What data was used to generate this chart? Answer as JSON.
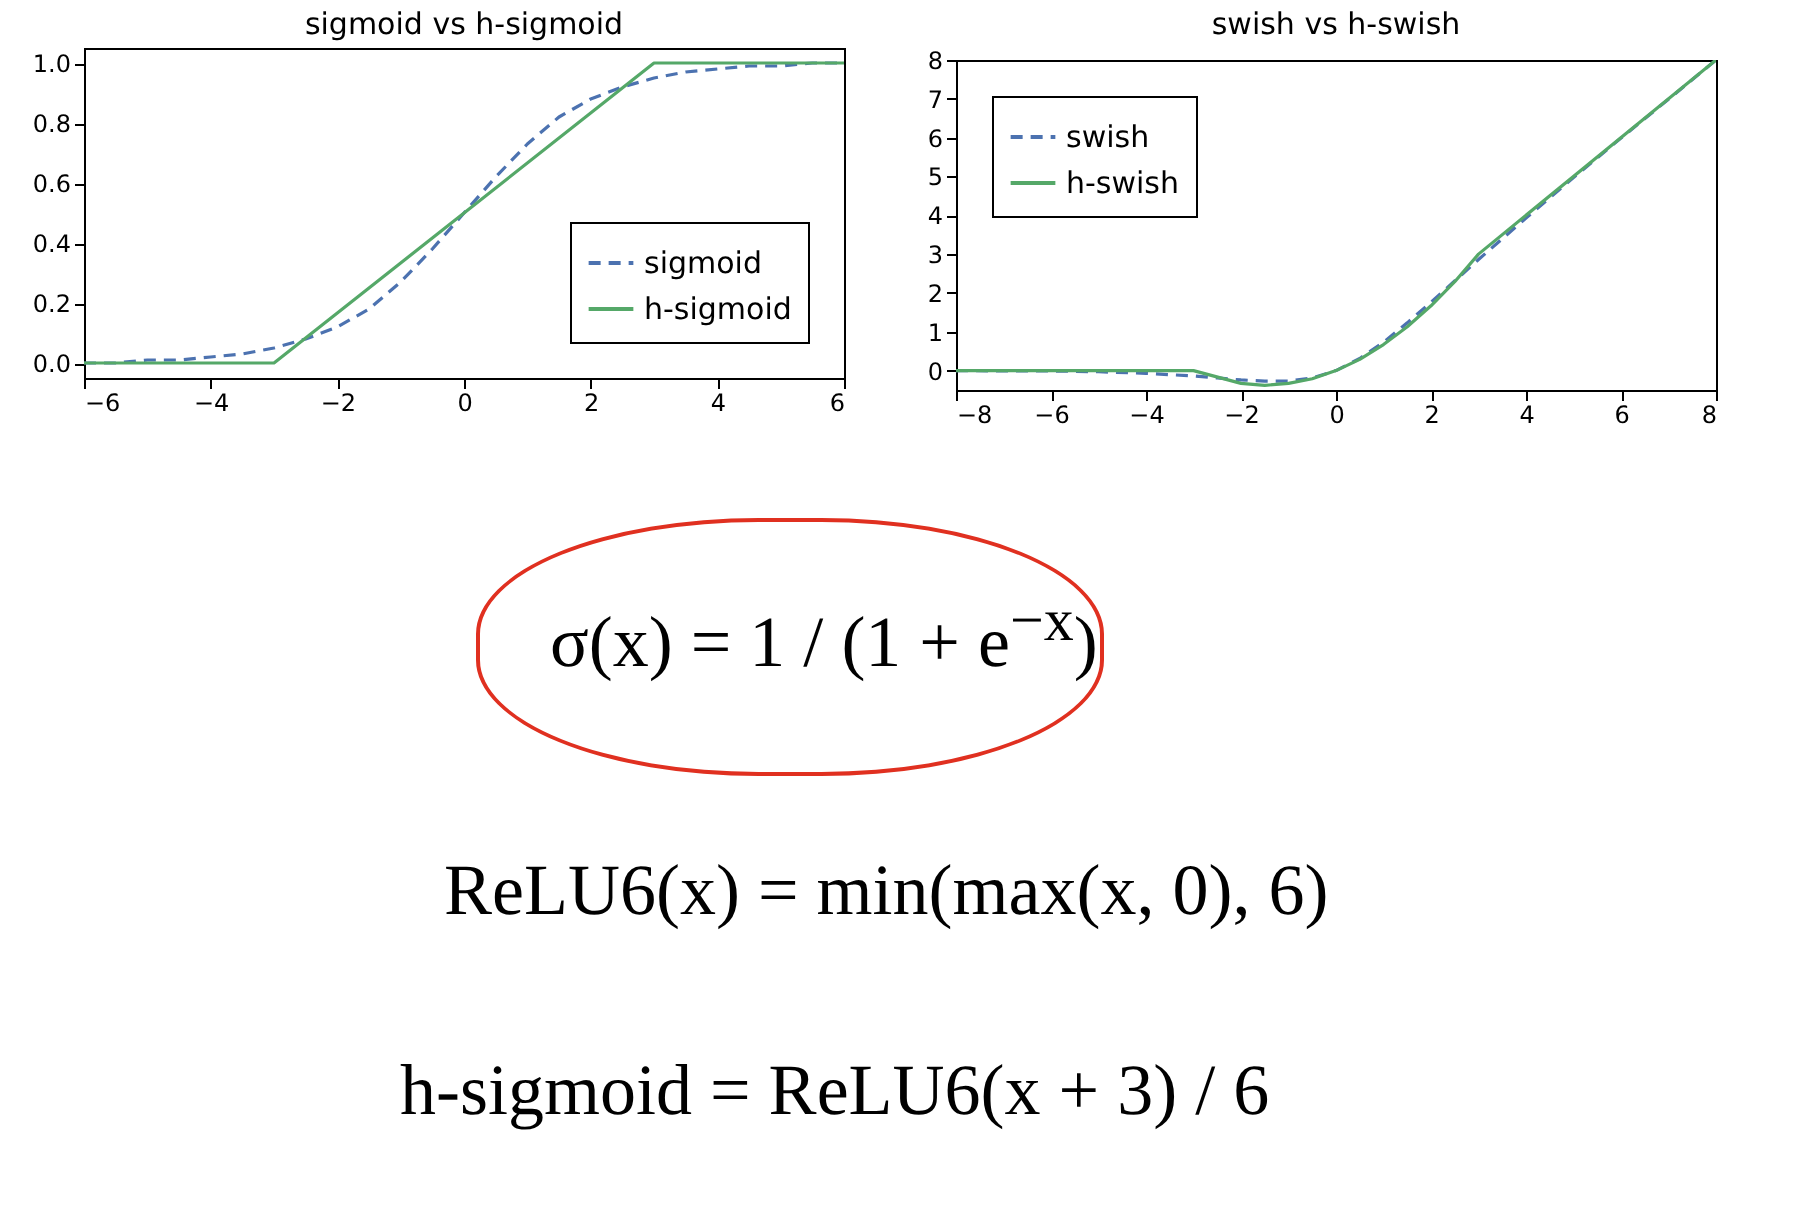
{
  "chart_data": [
    {
      "type": "line",
      "title": "sigmoid vs h-sigmoid",
      "legend": "bottom right",
      "xlim": [
        -6,
        6
      ],
      "ylim": [
        -0.05,
        1.05
      ],
      "xticks": [
        -6,
        -4,
        -2,
        0,
        2,
        4,
        6
      ],
      "yticks": [
        {
          "value": 0,
          "label": "0.0"
        },
        {
          "value": 0.2,
          "label": "0.2"
        },
        {
          "value": 0.4,
          "label": "0.4"
        },
        {
          "value": 0.6,
          "label": "0.6"
        },
        {
          "value": 0.8,
          "label": "0.8"
        },
        {
          "value": 1,
          "label": "1.0"
        }
      ],
      "series": [
        {
          "name": "sigmoid",
          "color": "#4c72b0",
          "line_style": "dashed",
          "x": [
            -6,
            -5.5,
            -5,
            -4.5,
            -4,
            -3.5,
            -3,
            -2.5,
            -2,
            -1.5,
            -1,
            -0.5,
            0,
            0.5,
            1,
            1.5,
            2,
            2.5,
            3,
            3.5,
            4,
            4.5,
            5,
            5.5,
            6
          ],
          "values": [
            0.0,
            0.0,
            0.01,
            0.01,
            0.02,
            0.03,
            0.05,
            0.08,
            0.12,
            0.18,
            0.27,
            0.38,
            0.5,
            0.62,
            0.73,
            0.82,
            0.88,
            0.92,
            0.95,
            0.97,
            0.98,
            0.99,
            0.99,
            1.0,
            1.0
          ]
        },
        {
          "name": "h-sigmoid",
          "color": "#55a868",
          "line_style": "solid",
          "x": [
            -6,
            -3,
            3,
            6
          ],
          "values": [
            0,
            0,
            1,
            1
          ]
        }
      ]
    },
    {
      "type": "line",
      "title": "swish vs h-swish",
      "legend": "top left",
      "xlim": [
        -8,
        8
      ],
      "ylim": [
        -0.5,
        8
      ],
      "xticks": [
        -8,
        -6,
        -4,
        -2,
        0,
        2,
        4,
        6,
        8
      ],
      "yticks": [
        0,
        1,
        2,
        3,
        4,
        5,
        6,
        7,
        8
      ],
      "series": [
        {
          "name": "swish",
          "color": "#4c72b0",
          "line_style": "dashed",
          "x": [
            -8,
            -7,
            -6,
            -5,
            -4,
            -3,
            -2.5,
            -2,
            -1.5,
            -1,
            -0.5,
            0,
            0.5,
            1,
            1.5,
            2,
            3,
            4,
            5,
            6,
            7,
            8
          ],
          "values": [
            0.0,
            -0.01,
            -0.01,
            -0.03,
            -0.07,
            -0.14,
            -0.19,
            -0.24,
            -0.27,
            -0.27,
            -0.19,
            0,
            0.31,
            0.73,
            1.23,
            1.76,
            2.86,
            3.93,
            4.97,
            5.99,
            6.99,
            8.0
          ]
        },
        {
          "name": "h-swish",
          "color": "#55a868",
          "line_style": "solid",
          "x": [
            -8,
            -3,
            -2,
            -1.5,
            -1,
            -0.5,
            0,
            0.5,
            1,
            1.5,
            2,
            2.5,
            3,
            8
          ],
          "values": [
            0,
            0,
            -0.33,
            -0.38,
            -0.33,
            -0.21,
            0,
            0.29,
            0.67,
            1.13,
            1.67,
            2.29,
            3,
            8
          ]
        }
      ]
    },
    {
      "type": "other",
      "annotations": [
        "σ(x) = 1 / (1 + e$^{−x}$)",
        "ReLU6(x) = min(max(x, 0), 6)",
        "h-sigmoid = ReLU6(x + 3) / 6"
      ]
    }
  ]
}
